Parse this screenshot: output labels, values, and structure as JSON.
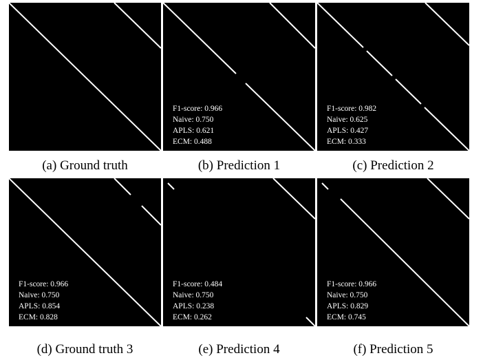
{
  "panels": [
    {
      "caption": "(a) Ground truth",
      "metrics": []
    },
    {
      "caption": "(b) Prediction 1",
      "metrics": [
        "F1-score: 0.966",
        "Naive: 0.750",
        "APLS: 0.621",
        "ECM: 0.488"
      ]
    },
    {
      "caption": "(c) Prediction 2",
      "metrics": [
        "F1-score: 0.982",
        "Naive: 0.625",
        "APLS: 0.427",
        "ECM: 0.333"
      ]
    },
    {
      "caption": "(d) Ground truth 3",
      "metrics": [
        "F1-score: 0.966",
        "Naive: 0.750",
        "APLS: 0.854",
        "ECM: 0.828"
      ]
    },
    {
      "caption": "(e) Prediction 4",
      "metrics": [
        "F1-score: 0.484",
        "Naive: 0.750",
        "APLS: 0.238",
        "ECM: 0.262"
      ]
    },
    {
      "caption": "(f) Prediction 5",
      "metrics": [
        "F1-score: 0.966",
        "Naive: 0.750",
        "APLS: 0.829",
        "ECM: 0.745"
      ]
    }
  ],
  "colors": {
    "background": "#000000",
    "road": "#ffffff"
  }
}
